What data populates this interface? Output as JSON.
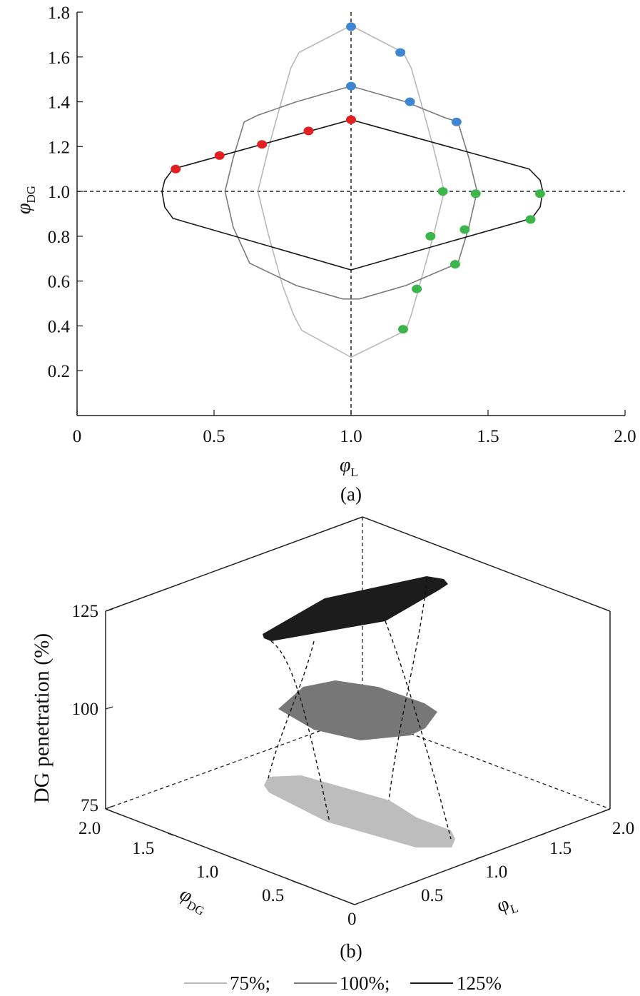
{
  "chart_data": [
    {
      "panel": "(a)",
      "type": "line",
      "xlabel": "φ",
      "xlabel_sub": "L",
      "ylabel": "φ",
      "ylabel_sub": "DG",
      "xlim": [
        0,
        2.0
      ],
      "ylim": [
        0,
        1.8
      ],
      "x_ticks": [
        "0",
        "0.5",
        "1.0",
        "1.5",
        "2.0"
      ],
      "x_tick_values": [
        0,
        0.5,
        1.0,
        1.5,
        2.0
      ],
      "y_ticks": [
        "0.2",
        "0.4",
        "0.6",
        "0.8",
        "1.0",
        "1.2",
        "1.4",
        "1.6",
        "1.8"
      ],
      "y_tick_values": [
        0.2,
        0.4,
        0.6,
        0.8,
        1.0,
        1.2,
        1.4,
        1.6,
        1.8
      ],
      "reference_lines": [
        {
          "orientation": "vertical",
          "x": 1.0,
          "style": "dashed"
        },
        {
          "orientation": "horizontal",
          "y": 1.0,
          "style": "dashed"
        }
      ],
      "series": [
        {
          "name": "75%",
          "color": "#b8b8b8",
          "points": [
            [
              1.0,
              1.74
            ],
            [
              1.19,
              1.62
            ],
            [
              1.22,
              1.55
            ],
            [
              1.25,
              1.42
            ],
            [
              1.3,
              1.2
            ],
            [
              1.34,
              1.0
            ],
            [
              1.3,
              0.8
            ],
            [
              1.25,
              0.58
            ],
            [
              1.22,
              0.45
            ],
            [
              1.2,
              0.38
            ],
            [
              1.0,
              0.26
            ],
            [
              0.82,
              0.38
            ],
            [
              0.79,
              0.45
            ],
            [
              0.75,
              0.58
            ],
            [
              0.7,
              0.8
            ],
            [
              0.66,
              1.0
            ],
            [
              0.7,
              1.2
            ],
            [
              0.75,
              1.42
            ],
            [
              0.78,
              1.55
            ],
            [
              0.81,
              1.62
            ],
            [
              1.0,
              1.74
            ]
          ]
        },
        {
          "name": "100%",
          "color": "#7a7a7a",
          "points": [
            [
              1.0,
              1.47
            ],
            [
              1.2,
              1.4
            ],
            [
              1.34,
              1.33
            ],
            [
              1.39,
              1.31
            ],
            [
              1.43,
              1.15
            ],
            [
              1.46,
              1.0
            ],
            [
              1.43,
              0.84
            ],
            [
              1.39,
              0.68
            ],
            [
              1.2,
              0.58
            ],
            [
              1.03,
              0.52
            ],
            [
              0.97,
              0.52
            ],
            [
              0.8,
              0.58
            ],
            [
              0.63,
              0.68
            ],
            [
              0.57,
              0.84
            ],
            [
              0.54,
              1.0
            ],
            [
              0.57,
              1.15
            ],
            [
              0.61,
              1.31
            ],
            [
              0.66,
              1.34
            ],
            [
              0.8,
              1.4
            ],
            [
              1.0,
              1.47
            ]
          ]
        },
        {
          "name": "125%",
          "color": "#1a1a1a",
          "points": [
            [
              1.0,
              1.32
            ],
            [
              1.65,
              1.1
            ],
            [
              1.69,
              1.05
            ],
            [
              1.7,
              1.0
            ],
            [
              1.69,
              0.93
            ],
            [
              1.66,
              0.88
            ],
            [
              1.0,
              0.65
            ],
            [
              0.35,
              0.88
            ],
            [
              0.32,
              0.93
            ],
            [
              0.31,
              1.0
            ],
            [
              0.32,
              1.05
            ],
            [
              0.35,
              1.1
            ],
            [
              1.0,
              1.32
            ]
          ]
        }
      ],
      "markers": [
        {
          "color": "#3f86d0",
          "points": [
            [
              1.0,
              1.735
            ],
            [
              1.18,
              1.62
            ],
            [
              1.0,
              1.47
            ],
            [
              1.215,
              1.4
            ],
            [
              1.385,
              1.31
            ]
          ]
        },
        {
          "color": "#e32021",
          "points": [
            [
              1.0,
              1.32
            ],
            [
              0.845,
              1.27
            ],
            [
              0.675,
              1.21
            ],
            [
              0.52,
              1.16
            ],
            [
              0.36,
              1.1
            ]
          ]
        },
        {
          "color": "#3cb54a",
          "points": [
            [
              1.335,
              1.0
            ],
            [
              1.455,
              0.99
            ],
            [
              1.69,
              0.99
            ],
            [
              1.655,
              0.875
            ],
            [
              1.415,
              0.83
            ],
            [
              1.29,
              0.8
            ],
            [
              1.38,
              0.675
            ],
            [
              1.24,
              0.565
            ],
            [
              1.19,
              0.385
            ]
          ]
        }
      ]
    },
    {
      "panel": "(b)",
      "type": "area",
      "zlabel": "DG penetration (%)",
      "xlabel": "φ",
      "xlabel_sub": "L",
      "ylabel": "φ",
      "ylabel_sub": "DG",
      "x_ticks": [
        "0.5",
        "1.0",
        "1.5",
        "2.0"
      ],
      "y_ticks": [
        "2.0",
        "1.5",
        "1.0",
        "0.5",
        "0"
      ],
      "z_ticks": [
        "125",
        "100",
        "75"
      ],
      "layers": [
        {
          "level": 125,
          "color": "#1c1c1c"
        },
        {
          "level": 100,
          "color": "#777777"
        },
        {
          "level": 75,
          "color": "#bdbdbd"
        }
      ]
    }
  ],
  "captions": {
    "a": "(a)",
    "b": "(b)"
  },
  "legend": [
    {
      "label": "75%;",
      "color": "#b8b8b8"
    },
    {
      "label": "100%;",
      "color": "#7a7a7a"
    },
    {
      "label": "125%",
      "color": "#1a1a1a"
    }
  ]
}
